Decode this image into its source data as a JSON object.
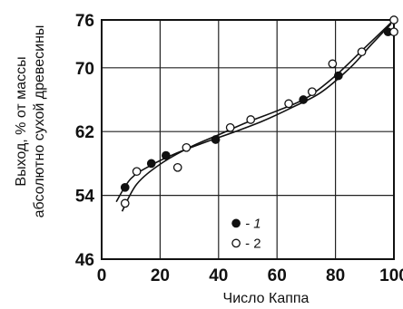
{
  "chart_data": {
    "type": "scatter",
    "title": "",
    "xlabel": "Число Каппа",
    "ylabel_lines": [
      "Выход, % от массы",
      "абсолютно сухой древесины"
    ],
    "xlim": [
      0,
      100
    ],
    "ylim": [
      46,
      76
    ],
    "x_ticks": [
      0,
      20,
      40,
      60,
      80,
      100
    ],
    "y_ticks": [
      46,
      54,
      62,
      70,
      76
    ],
    "grid": true,
    "legend": {
      "placement": "bottom-center",
      "entries": [
        {
          "marker": "filled-circle",
          "label": "- 1",
          "italic": true
        },
        {
          "marker": "open-circle",
          "label": "- 2",
          "italic": false
        }
      ]
    },
    "series": [
      {
        "marker": "filled-circle",
        "label": "- 1",
        "points": [
          [
            8,
            55
          ],
          [
            17,
            58
          ],
          [
            22,
            59
          ],
          [
            39,
            61
          ],
          [
            69,
            66
          ],
          [
            81,
            69
          ],
          [
            98,
            74.5
          ]
        ]
      },
      {
        "marker": "open-circle",
        "label": "- 2",
        "points": [
          [
            8,
            53
          ],
          [
            12,
            57
          ],
          [
            26,
            57.5
          ],
          [
            29,
            60
          ],
          [
            44,
            62.5
          ],
          [
            51,
            63.5
          ],
          [
            64,
            65.5
          ],
          [
            72,
            67
          ],
          [
            79,
            70.5
          ],
          [
            89,
            72
          ],
          [
            100,
            76
          ],
          [
            100,
            74.5
          ]
        ]
      }
    ],
    "curves": [
      {
        "name": "curve-1",
        "points": [
          [
            5,
            53.2
          ],
          [
            10,
            56.1
          ],
          [
            17,
            57.8
          ],
          [
            25,
            59.2
          ],
          [
            35,
            60.6
          ],
          [
            45,
            61.9
          ],
          [
            55,
            63.3
          ],
          [
            65,
            65
          ],
          [
            75,
            66.9
          ],
          [
            85,
            70
          ],
          [
            92,
            72.8
          ],
          [
            99,
            75.5
          ]
        ]
      },
      {
        "name": "curve-2",
        "points": [
          [
            7,
            52
          ],
          [
            12,
            55.4
          ],
          [
            20,
            57.9
          ],
          [
            30,
            60
          ],
          [
            40,
            61.6
          ],
          [
            50,
            63.2
          ],
          [
            60,
            64.6
          ],
          [
            70,
            66.2
          ],
          [
            80,
            69
          ],
          [
            90,
            72.5
          ],
          [
            100,
            76
          ]
        ]
      }
    ]
  }
}
